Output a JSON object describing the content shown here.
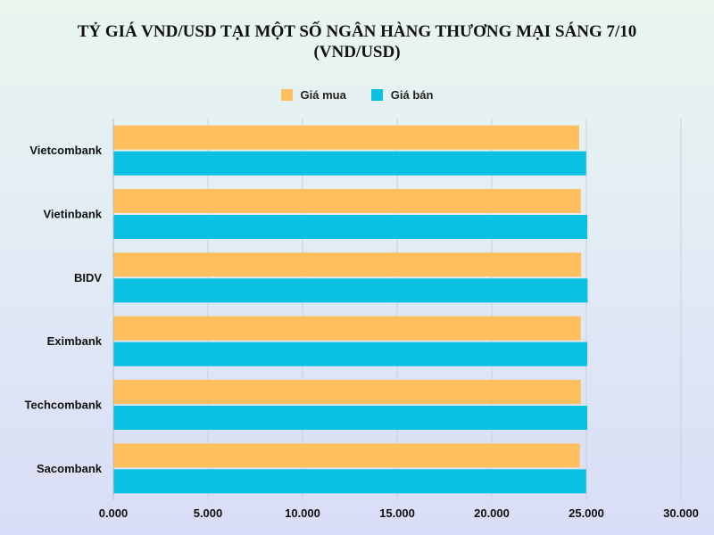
{
  "chart_data": {
    "type": "bar",
    "orientation": "horizontal",
    "title": "TỶ GIÁ VND/USD TẠI MỘT SỐ NGÂN HÀNG THƯƠNG MẠI SÁNG 7/10",
    "subtitle": "(VND/USD)",
    "categories": [
      "Vietcombank",
      "Vietinbank",
      "BIDV",
      "Eximbank",
      "Techcombank",
      "Sacombank"
    ],
    "series": [
      {
        "name": "Giá mua",
        "color": "#ffbf5f",
        "values": [
          24620,
          24710,
          24725,
          24710,
          24710,
          24650
        ]
      },
      {
        "name": "Giá bán",
        "color": "#0bc1e2",
        "values": [
          24990,
          25050,
          25065,
          25050,
          25050,
          24990
        ]
      }
    ],
    "x_ticks": [
      "0.000",
      "5.000",
      "10.000",
      "15.000",
      "20.000",
      "25.000",
      "30.000"
    ],
    "xlim": [
      0,
      30000
    ],
    "grid": true,
    "legend_position": "top-center"
  }
}
